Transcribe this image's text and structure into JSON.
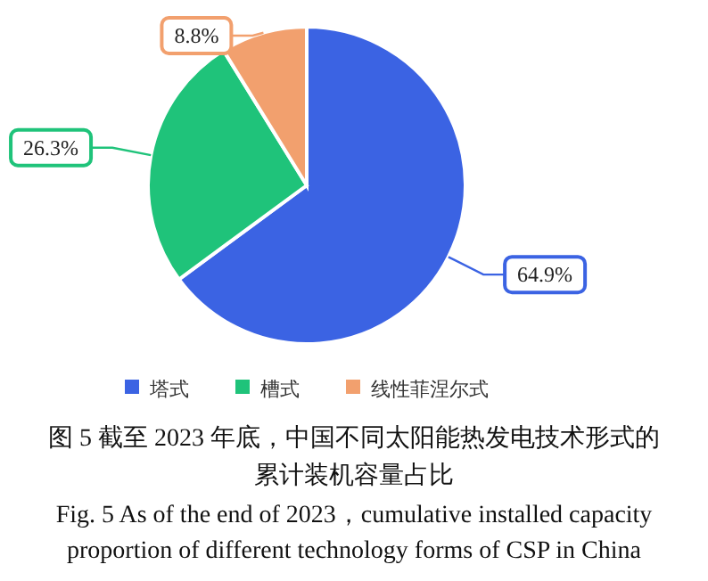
{
  "chart_data": {
    "type": "pie",
    "categories": [
      "塔式",
      "槽式",
      "线性菲涅尔式"
    ],
    "values": [
      64.9,
      26.3,
      8.8
    ],
    "colors": [
      "#3b63e3",
      "#1fc37a",
      "#f2a06e"
    ],
    "value_labels": [
      "64.9%",
      "26.3%",
      "8.8%"
    ],
    "legend": "bottom",
    "annotations": [
      "图 5 截至 2023 年底，中国不同太阳能热发电技术形式的累计装机容量占比",
      "Fig. 5 As of the end of 2023，cumulative installed capacity proportion of different technology forms of CSP in China"
    ]
  }
}
